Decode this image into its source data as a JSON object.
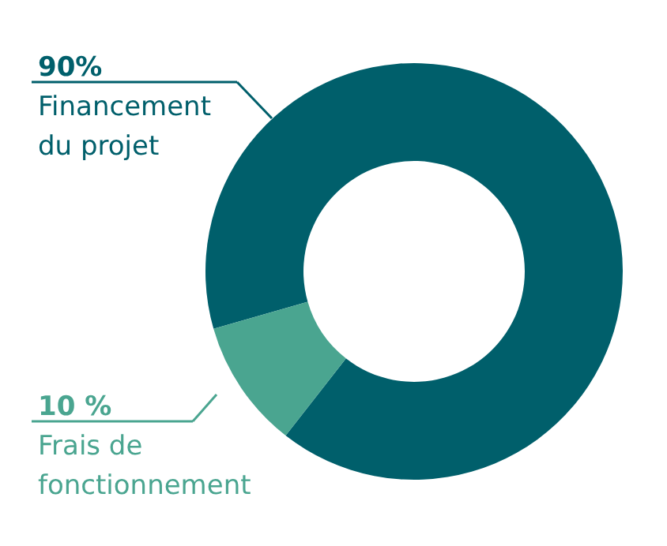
{
  "chart_data": {
    "type": "donut",
    "categories": [
      "Financement du projet",
      "Frais de fonctionnement"
    ],
    "values": [
      90,
      10
    ],
    "colors": [
      "#005f6b",
      "#4aa590"
    ],
    "value_labels": [
      "90%",
      "10 %"
    ]
  }
}
